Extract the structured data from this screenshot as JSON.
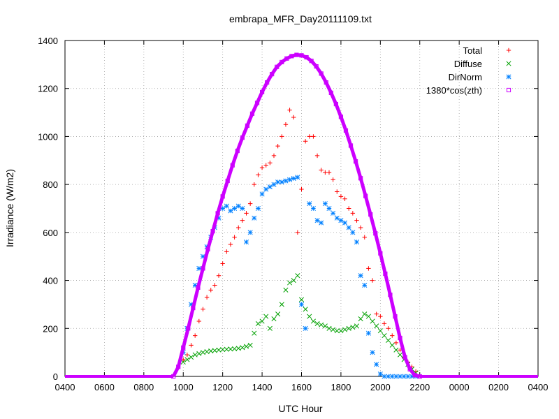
{
  "chart_data": {
    "type": "scatter",
    "title": "embrapa_MFR_Day20111109.txt",
    "xlabel": "UTC Hour",
    "ylabel": "Irradiance (W/m2)",
    "xlim": [
      4,
      28
    ],
    "ylim": [
      0,
      1400
    ],
    "x_tick_labels": [
      "0400",
      "0600",
      "0800",
      "1000",
      "1200",
      "1400",
      "1600",
      "1800",
      "2000",
      "2200",
      "0000",
      "0200",
      "0400"
    ],
    "y_tick_labels": [
      "0",
      "200",
      "400",
      "600",
      "800",
      "1000",
      "1200",
      "1400"
    ],
    "grid": true,
    "legend_position": "top-right",
    "series": [
      {
        "name": "Total",
        "marker": "plus",
        "color": "#ff0000",
        "x": [
          10.0,
          10.2,
          10.4,
          10.6,
          10.8,
          11.0,
          11.2,
          11.4,
          11.6,
          11.8,
          12.0,
          12.2,
          12.4,
          12.6,
          12.8,
          13.0,
          13.2,
          13.4,
          13.6,
          13.8,
          14.0,
          14.2,
          14.4,
          14.6,
          14.8,
          15.0,
          15.2,
          15.4,
          15.6,
          15.8,
          16.0,
          16.2,
          16.4,
          16.6,
          16.8,
          17.0,
          17.2,
          17.4,
          17.6,
          17.8,
          18.0,
          18.2,
          18.4,
          18.6,
          18.8,
          19.0,
          19.2,
          19.4,
          19.6,
          19.8,
          20.0,
          20.2,
          20.4,
          20.6,
          20.8,
          21.0,
          21.2,
          21.4,
          21.6,
          21.8
        ],
        "y": [
          70,
          90,
          130,
          170,
          230,
          280,
          330,
          360,
          380,
          420,
          470,
          520,
          550,
          580,
          620,
          650,
          680,
          720,
          800,
          840,
          870,
          880,
          890,
          920,
          960,
          1000,
          1050,
          1110,
          1080,
          600,
          780,
          980,
          1000,
          1000,
          920,
          860,
          850,
          850,
          820,
          770,
          750,
          740,
          700,
          680,
          650,
          620,
          580,
          450,
          400,
          260,
          250,
          220,
          200,
          170,
          140,
          110,
          80,
          60,
          40,
          20
        ]
      },
      {
        "name": "Diffuse",
        "marker": "cross",
        "color": "#00a000",
        "x": [
          10.0,
          10.2,
          10.4,
          10.6,
          10.8,
          11.0,
          11.2,
          11.4,
          11.6,
          11.8,
          12.0,
          12.2,
          12.4,
          12.6,
          12.8,
          13.0,
          13.2,
          13.4,
          13.6,
          13.8,
          14.0,
          14.2,
          14.4,
          14.6,
          14.8,
          15.0,
          15.2,
          15.4,
          15.6,
          15.8,
          16.0,
          16.2,
          16.4,
          16.6,
          16.8,
          17.0,
          17.2,
          17.4,
          17.6,
          17.8,
          18.0,
          18.2,
          18.4,
          18.6,
          18.8,
          19.0,
          19.2,
          19.4,
          19.6,
          19.8,
          20.0,
          20.2,
          20.4,
          20.6,
          20.8,
          21.0,
          21.2,
          21.4,
          21.6,
          21.8
        ],
        "y": [
          60,
          70,
          80,
          90,
          95,
          100,
          103,
          106,
          108,
          110,
          112,
          113,
          114,
          115,
          117,
          120,
          125,
          130,
          180,
          220,
          230,
          250,
          200,
          240,
          260,
          300,
          360,
          390,
          400,
          420,
          320,
          280,
          250,
          230,
          220,
          215,
          210,
          200,
          195,
          190,
          190,
          195,
          200,
          205,
          210,
          240,
          260,
          250,
          230,
          210,
          190,
          170,
          150,
          130,
          110,
          90,
          70,
          50,
          30,
          15
        ]
      },
      {
        "name": "DirNorm",
        "marker": "star",
        "color": "#0080ff",
        "x": [
          10.0,
          10.2,
          10.4,
          10.6,
          10.8,
          11.0,
          11.2,
          11.4,
          11.6,
          11.8,
          12.0,
          12.2,
          12.4,
          12.6,
          12.8,
          13.0,
          13.2,
          13.4,
          13.6,
          13.8,
          14.0,
          14.2,
          14.4,
          14.6,
          14.8,
          15.0,
          15.2,
          15.4,
          15.6,
          15.8,
          16.0,
          16.2,
          16.4,
          16.6,
          16.8,
          17.0,
          17.2,
          17.4,
          17.6,
          17.8,
          18.0,
          18.2,
          18.4,
          18.6,
          18.8,
          19.0,
          19.2,
          19.4,
          19.6,
          19.8,
          20.0,
          20.2,
          20.4,
          20.6,
          20.8,
          21.0,
          21.2,
          21.4,
          21.6,
          21.8
        ],
        "y": [
          100,
          200,
          300,
          380,
          450,
          500,
          540,
          580,
          620,
          660,
          700,
          710,
          690,
          700,
          710,
          700,
          560,
          600,
          660,
          700,
          760,
          780,
          790,
          800,
          810,
          810,
          815,
          820,
          825,
          830,
          300,
          200,
          720,
          700,
          650,
          640,
          720,
          700,
          680,
          660,
          650,
          640,
          620,
          600,
          560,
          420,
          380,
          180,
          100,
          50,
          10,
          0,
          0,
          0,
          0,
          0,
          0,
          0,
          0,
          0
        ]
      },
      {
        "name": "1380*cos(zth)",
        "marker": "square",
        "color": "#cc00ff",
        "x": [
          9.5,
          9.75,
          10.0,
          10.25,
          10.5,
          10.75,
          11.0,
          11.25,
          11.5,
          11.75,
          12.0,
          12.25,
          12.5,
          12.75,
          13.0,
          13.25,
          13.5,
          13.75,
          14.0,
          14.25,
          14.5,
          14.75,
          15.0,
          15.25,
          15.5,
          15.75,
          16.0,
          16.25,
          16.5,
          16.75,
          17.0,
          17.25,
          17.5,
          17.75,
          18.0,
          18.25,
          18.5,
          18.75,
          19.0,
          19.25,
          19.5,
          19.75,
          20.0,
          20.25,
          20.5,
          20.75,
          21.0,
          21.25,
          21.5,
          21.75,
          22.0
        ],
        "y": [
          0,
          40,
          120,
          200,
          285,
          370,
          450,
          530,
          605,
          680,
          750,
          815,
          880,
          940,
          995,
          1045,
          1095,
          1140,
          1185,
          1225,
          1260,
          1290,
          1310,
          1325,
          1335,
          1340,
          1338,
          1330,
          1315,
          1292,
          1262,
          1225,
          1182,
          1135,
          1082,
          1025,
          962,
          896,
          826,
          752,
          675,
          596,
          513,
          428,
          340,
          250,
          160,
          80,
          30,
          5,
          0
        ]
      }
    ]
  }
}
